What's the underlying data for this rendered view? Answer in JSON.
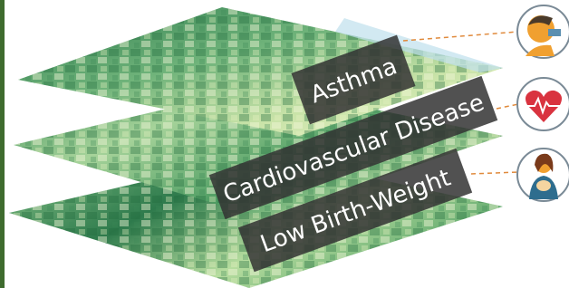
{
  "layers": [
    {
      "label": "Asthma"
    },
    {
      "label": "Cardiovascular Disease"
    },
    {
      "label": "Low Birth-Weight"
    }
  ]
}
